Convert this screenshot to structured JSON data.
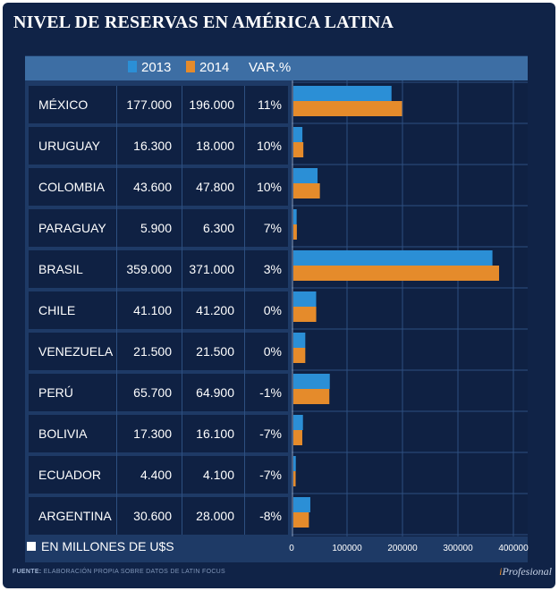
{
  "title": "NIVEL DE RESERVAS EN AMÉRICA LATINA",
  "legend": {
    "label_2013": "2013",
    "label_2014": "2014",
    "label_var": "VAR.%"
  },
  "colors": {
    "series_2013": "#2b8fd6",
    "series_2014": "#e58b2b",
    "background": "#102347"
  },
  "unit_note": "EN MILLONES DE U$S",
  "source": {
    "label": "FUENTE:",
    "text": "ELABORACIÓN PROPIA SOBRE DATOS DE LATIN FOCUS"
  },
  "brand": {
    "prefix": "i",
    "name": "Profesional"
  },
  "rows": [
    {
      "country": "MÉXICO",
      "v2013": "177.000",
      "v2014": "196.000",
      "var": "11%"
    },
    {
      "country": "URUGUAY",
      "v2013": "16.300",
      "v2014": "18.000",
      "var": "10%"
    },
    {
      "country": "COLOMBIA",
      "v2013": "43.600",
      "v2014": "47.800",
      "var": "10%"
    },
    {
      "country": "PARAGUAY",
      "v2013": "5.900",
      "v2014": "6.300",
      "var": "7%"
    },
    {
      "country": "BRASIL",
      "v2013": "359.000",
      "v2014": "371.000",
      "var": "3%"
    },
    {
      "country": "CHILE",
      "v2013": "41.100",
      "v2014": "41.200",
      "var": "0%"
    },
    {
      "country": "VENEZUELA",
      "v2013": "21.500",
      "v2014": "21.500",
      "var": "0%"
    },
    {
      "country": "PERÚ",
      "v2013": "65.700",
      "v2014": "64.900",
      "var": "-1%"
    },
    {
      "country": "BOLIVIA",
      "v2013": "17.300",
      "v2014": "16.100",
      "var": "-7%"
    },
    {
      "country": "ECUADOR",
      "v2013": "4.400",
      "v2014": "4.100",
      "var": "-7%"
    },
    {
      "country": "ARGENTINA",
      "v2013": "30.600",
      "v2014": "28.000",
      "var": "-8%"
    }
  ],
  "chart_data": {
    "type": "bar",
    "orientation": "horizontal",
    "title": "NIVEL DE RESERVAS EN AMÉRICA LATINA",
    "categories": [
      "MÉXICO",
      "URUGUAY",
      "COLOMBIA",
      "PARAGUAY",
      "BRASIL",
      "CHILE",
      "VENEZUELA",
      "PERÚ",
      "BOLIVIA",
      "ECUADOR",
      "ARGENTINA"
    ],
    "series": [
      {
        "name": "2013",
        "values": [
          177000,
          16300,
          43600,
          5900,
          359000,
          41100,
          21500,
          65700,
          17300,
          4400,
          30600
        ]
      },
      {
        "name": "2014",
        "values": [
          196000,
          18000,
          47800,
          6300,
          371000,
          41200,
          21500,
          64900,
          16100,
          4100,
          28000
        ]
      }
    ],
    "xlim": [
      0,
      400000
    ],
    "xticks": [
      0,
      100000,
      200000,
      300000,
      400000
    ],
    "xtick_labels": [
      "0",
      "100000",
      "200000",
      "300000",
      "400000"
    ],
    "unit": "EN MILLONES DE U$S",
    "grid": true,
    "legend": "top"
  }
}
